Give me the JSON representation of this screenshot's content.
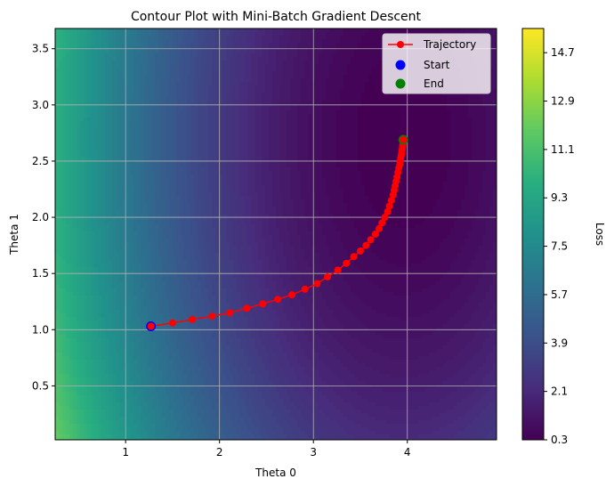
{
  "chart_data": {
    "type": "contour",
    "title": "Contour Plot with Mini-Batch Gradient Descent",
    "xlabel": "Theta 0",
    "ylabel": "Theta 1",
    "xlim": [
      0.25,
      4.95
    ],
    "ylim": [
      0.02,
      3.68
    ],
    "xticks": [
      1,
      2,
      3,
      4
    ],
    "yticks": [
      0.5,
      1.0,
      1.5,
      2.0,
      2.5,
      3.0,
      3.5
    ],
    "grid": true,
    "colormap": "viridis",
    "loss_minimum": {
      "x": 3.96,
      "y": 2.7
    },
    "colorbar": {
      "label": "Loss",
      "range": [
        0.3,
        15.6
      ],
      "ticks": [
        0.3,
        2.1,
        3.9,
        5.7,
        7.5,
        9.3,
        11.1,
        12.9,
        14.7
      ]
    },
    "legend": {
      "position": "top-right",
      "entries": [
        {
          "label": "Trajectory",
          "color": "#ff0000",
          "marker": "line-circle"
        },
        {
          "label": "Start",
          "color": "#0000ff",
          "marker": "circle"
        },
        {
          "label": "End",
          "color": "#008000",
          "marker": "circle"
        }
      ]
    },
    "series": [
      {
        "name": "Trajectory",
        "color": "#ff0000",
        "x": [
          1.27,
          1.5,
          1.71,
          1.92,
          2.11,
          2.29,
          2.46,
          2.62,
          2.77,
          2.91,
          3.04,
          3.15,
          3.26,
          3.35,
          3.43,
          3.5,
          3.56,
          3.61,
          3.66,
          3.7,
          3.73,
          3.76,
          3.79,
          3.81,
          3.83,
          3.85,
          3.86,
          3.87,
          3.88,
          3.89,
          3.9,
          3.91,
          3.92,
          3.925,
          3.93,
          3.935,
          3.94,
          3.944,
          3.947,
          3.95,
          3.952,
          3.954,
          3.956,
          3.957,
          3.958
        ],
        "y": [
          1.03,
          1.06,
          1.09,
          1.12,
          1.15,
          1.19,
          1.23,
          1.27,
          1.31,
          1.36,
          1.41,
          1.47,
          1.53,
          1.59,
          1.65,
          1.7,
          1.75,
          1.8,
          1.85,
          1.9,
          1.95,
          2.0,
          2.05,
          2.1,
          2.15,
          2.2,
          2.24,
          2.28,
          2.32,
          2.36,
          2.4,
          2.44,
          2.47,
          2.5,
          2.53,
          2.55,
          2.57,
          2.59,
          2.61,
          2.63,
          2.645,
          2.66,
          2.67,
          2.68,
          2.69
        ]
      },
      {
        "name": "Start",
        "color": "#0000ff",
        "x": [
          1.27
        ],
        "y": [
          1.03
        ]
      },
      {
        "name": "End",
        "color": "#008000",
        "x": [
          3.958
        ],
        "y": [
          2.69
        ]
      }
    ]
  }
}
